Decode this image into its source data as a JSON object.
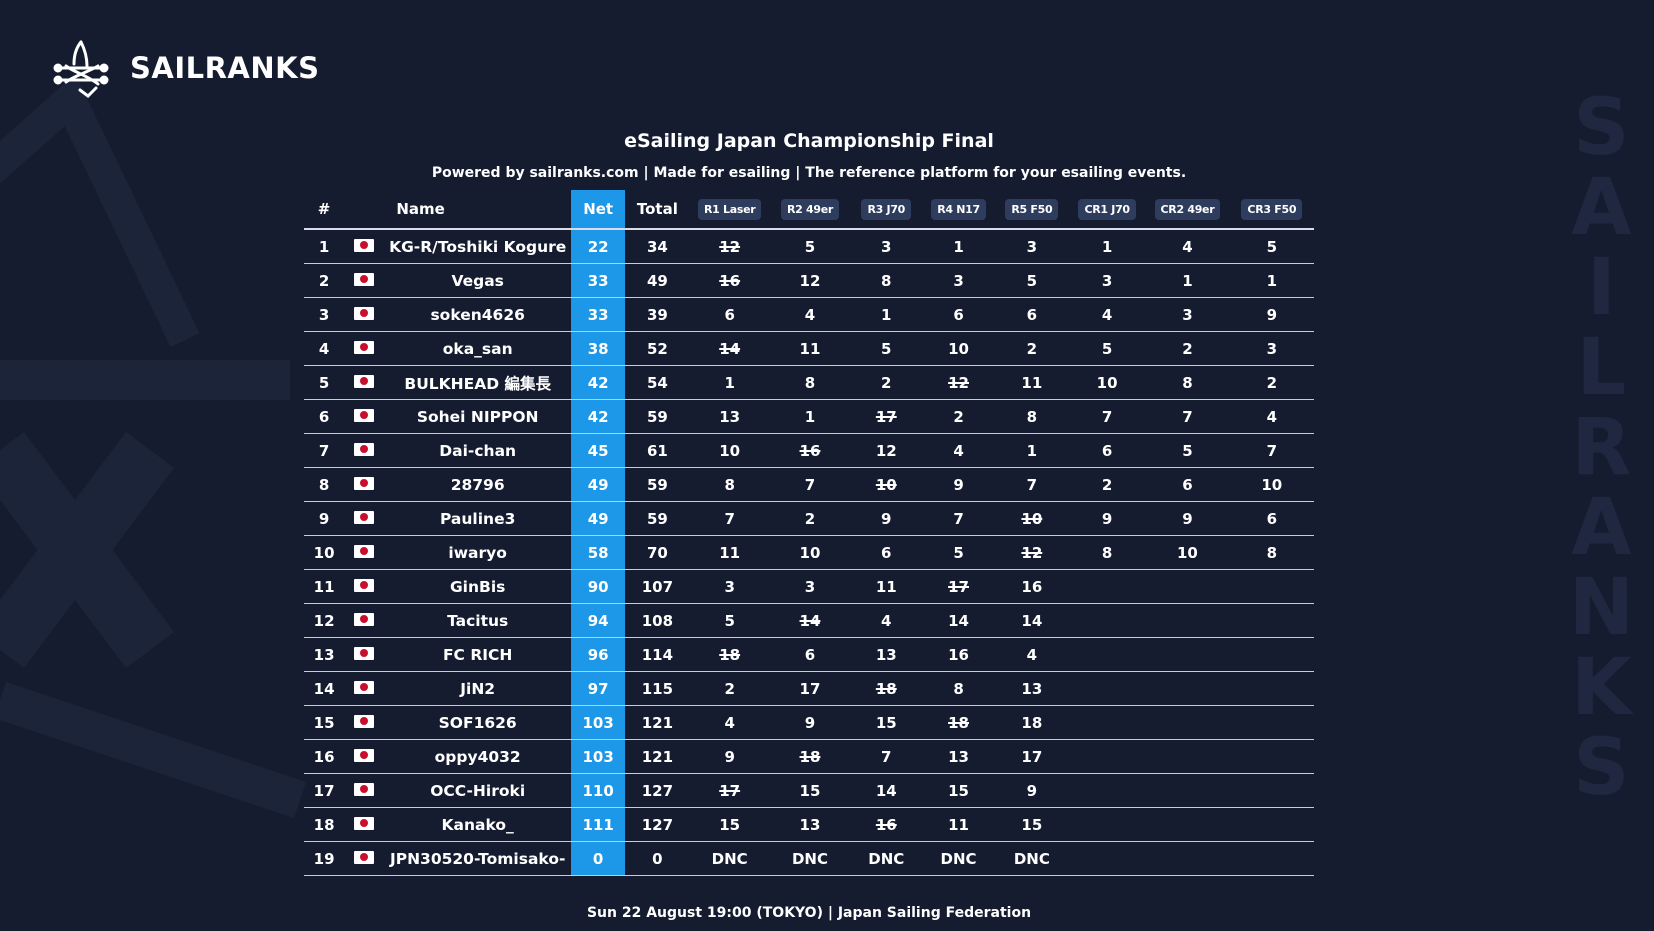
{
  "brand": {
    "name": "SAILRANKS",
    "side_letters": [
      "S",
      "A",
      "I",
      "L",
      "R",
      "A",
      "N",
      "K",
      "S"
    ]
  },
  "title": "eSailing Japan Championship Final",
  "subtitle": "Powered by sailranks.com | Made for esailing | The reference platform for your esailing events.",
  "footer": "Sun 22 August 19:00 (TOKYO) | Japan Sailing Federation",
  "colors": {
    "background": "#161c30",
    "net_column": "#1d97e8",
    "race_pill": "#2e3d5e"
  },
  "headers": {
    "rank": "#",
    "name": "Name",
    "net": "Net",
    "total": "Total",
    "races": [
      "R1 Laser",
      "R2 49er",
      "R3 J70",
      "R4 N17",
      "R5 F50",
      "CR1 J70",
      "CR2 49er",
      "CR3 F50"
    ]
  },
  "rows": [
    {
      "rank": "1",
      "flag": "japan-flag",
      "name": "KG-R/Toshiki Kogure",
      "net": "22",
      "total": "34",
      "races": [
        {
          "v": "12",
          "d": true
        },
        {
          "v": "5"
        },
        {
          "v": "3"
        },
        {
          "v": "1"
        },
        {
          "v": "3"
        },
        {
          "v": "1"
        },
        {
          "v": "4"
        },
        {
          "v": "5"
        }
      ]
    },
    {
      "rank": "2",
      "flag": "japan-flag",
      "name": "Vegas",
      "net": "33",
      "total": "49",
      "races": [
        {
          "v": "16",
          "d": true
        },
        {
          "v": "12"
        },
        {
          "v": "8"
        },
        {
          "v": "3"
        },
        {
          "v": "5"
        },
        {
          "v": "3"
        },
        {
          "v": "1"
        },
        {
          "v": "1"
        }
      ]
    },
    {
      "rank": "3",
      "flag": "japan-flag",
      "name": "soken4626",
      "net": "33",
      "total": "39",
      "races": [
        {
          "v": "6"
        },
        {
          "v": "4"
        },
        {
          "v": "1"
        },
        {
          "v": "6"
        },
        {
          "v": "6"
        },
        {
          "v": "4"
        },
        {
          "v": "3"
        },
        {
          "v": "9"
        }
      ]
    },
    {
      "rank": "4",
      "flag": "japan-flag",
      "name": "oka_san",
      "net": "38",
      "total": "52",
      "races": [
        {
          "v": "14",
          "d": true
        },
        {
          "v": "11"
        },
        {
          "v": "5"
        },
        {
          "v": "10"
        },
        {
          "v": "2"
        },
        {
          "v": "5"
        },
        {
          "v": "2"
        },
        {
          "v": "3"
        }
      ]
    },
    {
      "rank": "5",
      "flag": "japan-flag",
      "name": "BULKHEAD 編集長",
      "net": "42",
      "total": "54",
      "races": [
        {
          "v": "1"
        },
        {
          "v": "8"
        },
        {
          "v": "2"
        },
        {
          "v": "12",
          "d": true
        },
        {
          "v": "11"
        },
        {
          "v": "10"
        },
        {
          "v": "8"
        },
        {
          "v": "2"
        }
      ]
    },
    {
      "rank": "6",
      "flag": "japan-flag",
      "name": "Sohei NIPPON",
      "net": "42",
      "total": "59",
      "races": [
        {
          "v": "13"
        },
        {
          "v": "1"
        },
        {
          "v": "17",
          "d": true
        },
        {
          "v": "2"
        },
        {
          "v": "8"
        },
        {
          "v": "7"
        },
        {
          "v": "7"
        },
        {
          "v": "4"
        }
      ]
    },
    {
      "rank": "7",
      "flag": "japan-flag",
      "name": "Dai-chan",
      "net": "45",
      "total": "61",
      "races": [
        {
          "v": "10"
        },
        {
          "v": "16",
          "d": true
        },
        {
          "v": "12"
        },
        {
          "v": "4"
        },
        {
          "v": "1"
        },
        {
          "v": "6"
        },
        {
          "v": "5"
        },
        {
          "v": "7"
        }
      ]
    },
    {
      "rank": "8",
      "flag": "japan-flag",
      "name": "28796",
      "net": "49",
      "total": "59",
      "races": [
        {
          "v": "8"
        },
        {
          "v": "7"
        },
        {
          "v": "10",
          "d": true
        },
        {
          "v": "9"
        },
        {
          "v": "7"
        },
        {
          "v": "2"
        },
        {
          "v": "6"
        },
        {
          "v": "10"
        }
      ]
    },
    {
      "rank": "9",
      "flag": "japan-flag",
      "name": "Pauline3",
      "net": "49",
      "total": "59",
      "races": [
        {
          "v": "7"
        },
        {
          "v": "2"
        },
        {
          "v": "9"
        },
        {
          "v": "7"
        },
        {
          "v": "10",
          "d": true
        },
        {
          "v": "9"
        },
        {
          "v": "9"
        },
        {
          "v": "6"
        }
      ]
    },
    {
      "rank": "10",
      "flag": "japan-flag",
      "name": "iwaryo",
      "net": "58",
      "total": "70",
      "races": [
        {
          "v": "11"
        },
        {
          "v": "10"
        },
        {
          "v": "6"
        },
        {
          "v": "5"
        },
        {
          "v": "12",
          "d": true
        },
        {
          "v": "8"
        },
        {
          "v": "10"
        },
        {
          "v": "8"
        }
      ]
    },
    {
      "rank": "11",
      "flag": "japan-flag",
      "name": "GinBis",
      "net": "90",
      "total": "107",
      "races": [
        {
          "v": "3"
        },
        {
          "v": "3"
        },
        {
          "v": "11"
        },
        {
          "v": "17",
          "d": true
        },
        {
          "v": "16"
        },
        {
          "v": ""
        },
        {
          "v": ""
        },
        {
          "v": ""
        }
      ]
    },
    {
      "rank": "12",
      "flag": "japan-flag",
      "name": "Tacitus",
      "net": "94",
      "total": "108",
      "races": [
        {
          "v": "5"
        },
        {
          "v": "14",
          "d": true
        },
        {
          "v": "4"
        },
        {
          "v": "14"
        },
        {
          "v": "14"
        },
        {
          "v": ""
        },
        {
          "v": ""
        },
        {
          "v": ""
        }
      ]
    },
    {
      "rank": "13",
      "flag": "japan-flag",
      "name": "FC RICH",
      "net": "96",
      "total": "114",
      "races": [
        {
          "v": "18",
          "d": true
        },
        {
          "v": "6"
        },
        {
          "v": "13"
        },
        {
          "v": "16"
        },
        {
          "v": "4"
        },
        {
          "v": ""
        },
        {
          "v": ""
        },
        {
          "v": ""
        }
      ]
    },
    {
      "rank": "14",
      "flag": "japan-flag",
      "name": "JiN2",
      "net": "97",
      "total": "115",
      "races": [
        {
          "v": "2"
        },
        {
          "v": "17"
        },
        {
          "v": "18",
          "d": true
        },
        {
          "v": "8"
        },
        {
          "v": "13"
        },
        {
          "v": ""
        },
        {
          "v": ""
        },
        {
          "v": ""
        }
      ]
    },
    {
      "rank": "15",
      "flag": "japan-flag",
      "name": "SOF1626",
      "net": "103",
      "total": "121",
      "races": [
        {
          "v": "4"
        },
        {
          "v": "9"
        },
        {
          "v": "15"
        },
        {
          "v": "18",
          "d": true
        },
        {
          "v": "18"
        },
        {
          "v": ""
        },
        {
          "v": ""
        },
        {
          "v": ""
        }
      ]
    },
    {
      "rank": "16",
      "flag": "japan-flag",
      "name": "oppy4032",
      "net": "103",
      "total": "121",
      "races": [
        {
          "v": "9"
        },
        {
          "v": "18",
          "d": true
        },
        {
          "v": "7"
        },
        {
          "v": "13"
        },
        {
          "v": "17"
        },
        {
          "v": ""
        },
        {
          "v": ""
        },
        {
          "v": ""
        }
      ]
    },
    {
      "rank": "17",
      "flag": "japan-flag",
      "name": "OCC-Hiroki",
      "net": "110",
      "total": "127",
      "races": [
        {
          "v": "17",
          "d": true
        },
        {
          "v": "15"
        },
        {
          "v": "14"
        },
        {
          "v": "15"
        },
        {
          "v": "9"
        },
        {
          "v": ""
        },
        {
          "v": ""
        },
        {
          "v": ""
        }
      ]
    },
    {
      "rank": "18",
      "flag": "japan-flag",
      "name": "Kanako_",
      "net": "111",
      "total": "127",
      "races": [
        {
          "v": "15"
        },
        {
          "v": "13"
        },
        {
          "v": "16",
          "d": true
        },
        {
          "v": "11"
        },
        {
          "v": "15"
        },
        {
          "v": ""
        },
        {
          "v": ""
        },
        {
          "v": ""
        }
      ]
    },
    {
      "rank": "19",
      "flag": "japan-flag",
      "name": "JPN30520-Tomisako-",
      "net": "0",
      "total": "0",
      "races": [
        {
          "v": "DNC"
        },
        {
          "v": "DNC"
        },
        {
          "v": "DNC"
        },
        {
          "v": "DNC"
        },
        {
          "v": "DNC"
        },
        {
          "v": ""
        },
        {
          "v": ""
        },
        {
          "v": ""
        }
      ]
    }
  ]
}
